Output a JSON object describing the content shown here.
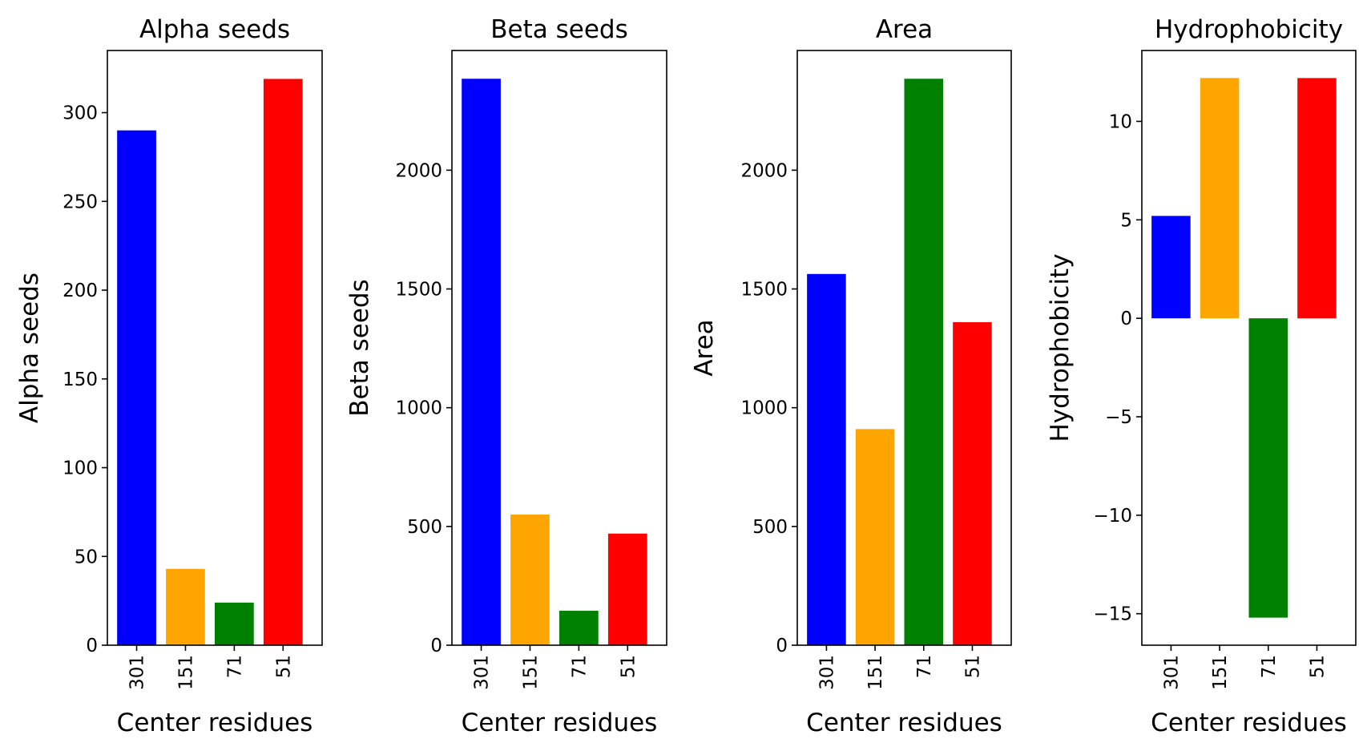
{
  "chart_data": [
    {
      "type": "bar",
      "title": "Alpha seeds",
      "xlabel": "Center residues",
      "ylabel": "Alpha seeds",
      "categories": [
        "301",
        "151",
        "71",
        "51"
      ],
      "values": [
        290,
        43,
        24,
        319
      ],
      "colors": [
        "#0000ff",
        "#ffa500",
        "#008000",
        "#ff0000"
      ],
      "ylim": [
        0,
        335
      ],
      "yticks": [
        0,
        50,
        100,
        150,
        200,
        250,
        300
      ],
      "ytick_labels": [
        "0",
        "50",
        "100",
        "150",
        "200",
        "250",
        "300"
      ],
      "grid": false
    },
    {
      "type": "bar",
      "title": "Beta seeds",
      "xlabel": "Center residues",
      "ylabel": "Beta seeds",
      "categories": [
        "301",
        "151",
        "71",
        "51"
      ],
      "values": [
        2385,
        550,
        145,
        470
      ],
      "colors": [
        "#0000ff",
        "#ffa500",
        "#008000",
        "#ff0000"
      ],
      "ylim": [
        0,
        2504
      ],
      "yticks": [
        0,
        500,
        1000,
        1500,
        2000
      ],
      "ytick_labels": [
        "0",
        "500",
        "1000",
        "1500",
        "2000"
      ],
      "grid": false
    },
    {
      "type": "bar",
      "title": "Area",
      "xlabel": "Center residues",
      "ylabel": "Area",
      "categories": [
        "301",
        "151",
        "71",
        "51"
      ],
      "values": [
        1563,
        910,
        2385,
        1360
      ],
      "colors": [
        "#0000ff",
        "#ffa500",
        "#008000",
        "#ff0000"
      ],
      "ylim": [
        0,
        2504
      ],
      "yticks": [
        0,
        500,
        1000,
        1500,
        2000
      ],
      "ytick_labels": [
        "0",
        "500",
        "1000",
        "1500",
        "2000"
      ],
      "grid": false
    },
    {
      "type": "bar",
      "title": "Hydrophobicity",
      "xlabel": "Center residues",
      "ylabel": "Hydrophobicity",
      "categories": [
        "301",
        "151",
        "71",
        "51"
      ],
      "values": [
        5.2,
        12.2,
        -15.2,
        12.2
      ],
      "colors": [
        "#0000ff",
        "#ffa500",
        "#008000",
        "#ff0000"
      ],
      "ylim": [
        -16.6,
        13.6
      ],
      "yticks": [
        -15,
        -10,
        -5,
        0,
        5,
        10
      ],
      "ytick_labels": [
        "−15",
        "−10",
        "−5",
        "0",
        "5",
        "10"
      ],
      "grid": false
    }
  ]
}
